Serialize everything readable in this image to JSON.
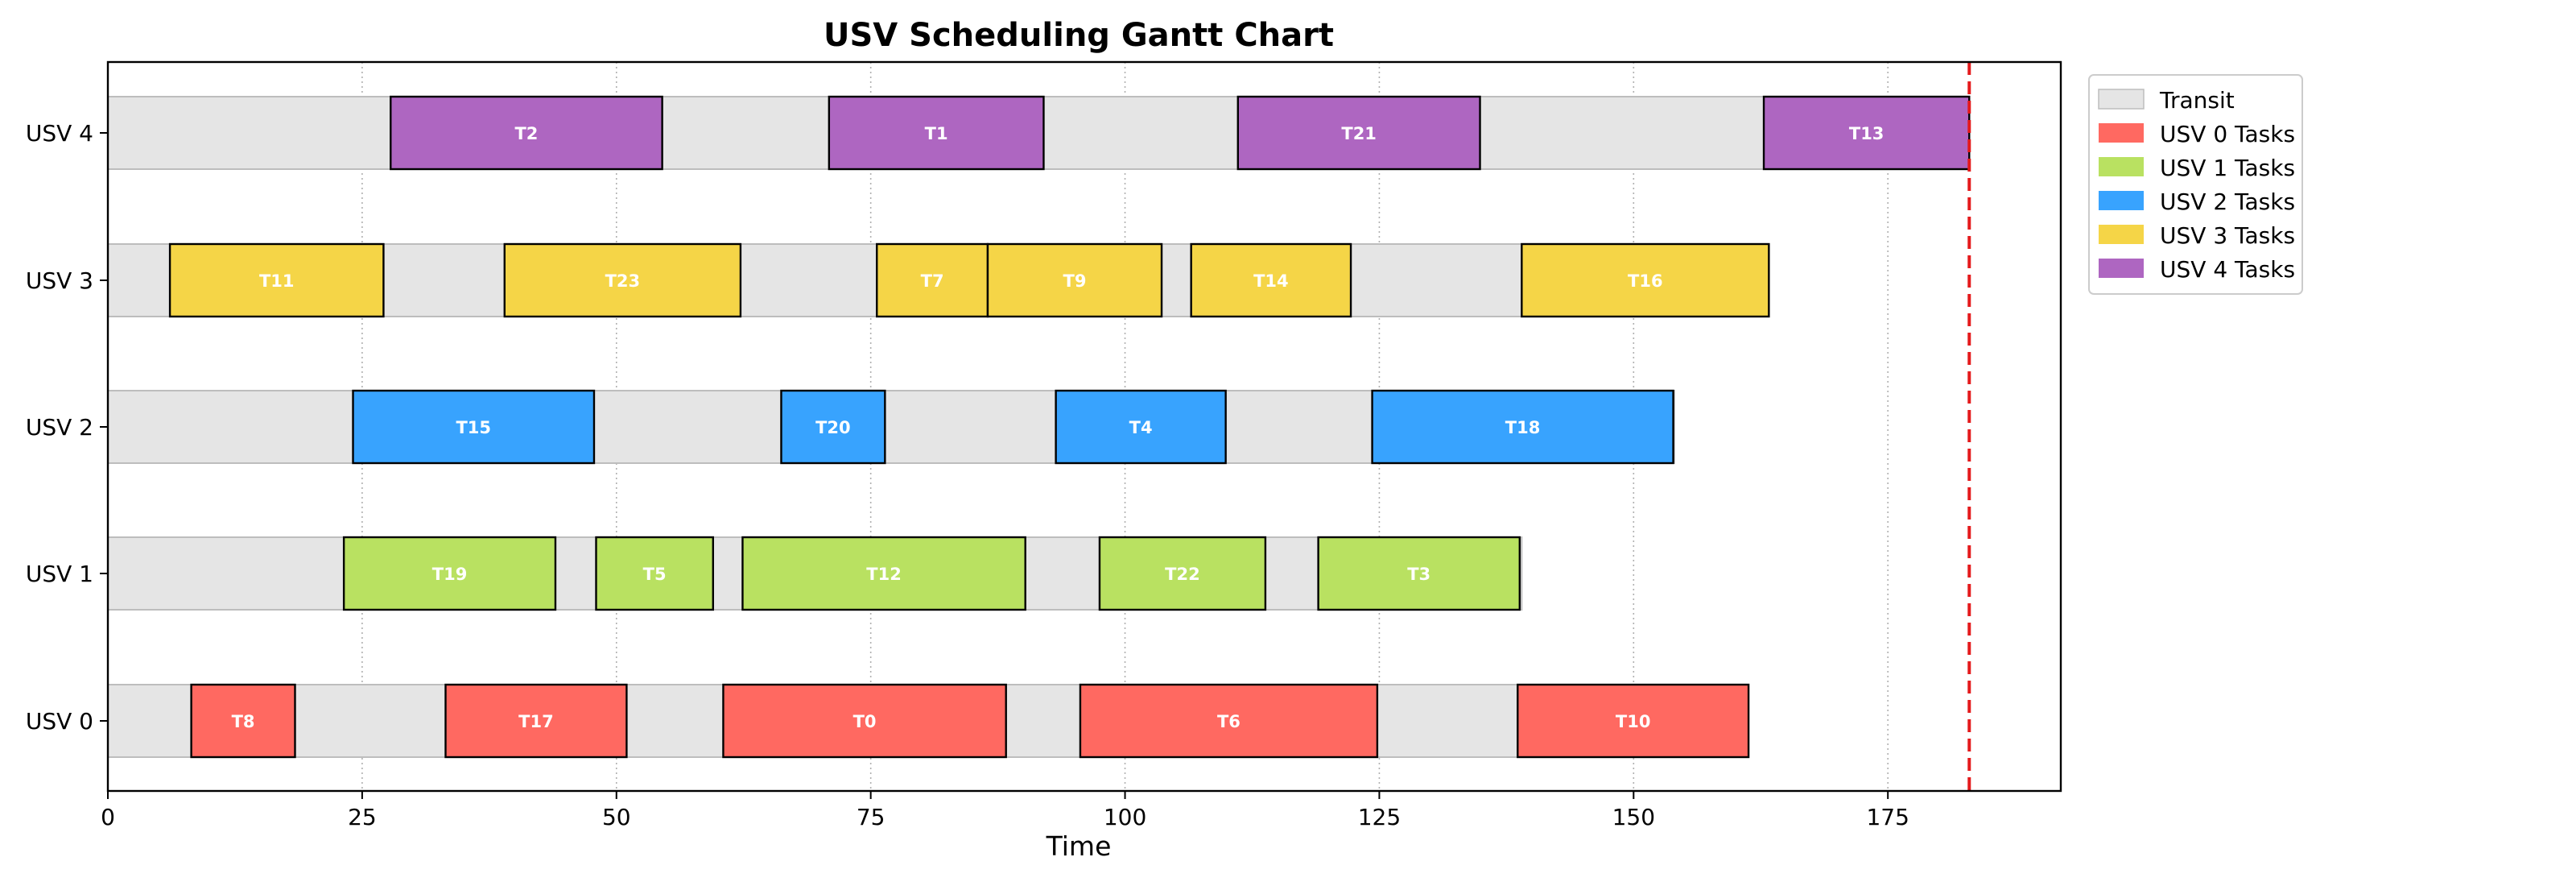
{
  "chart_data": {
    "type": "gantt",
    "title": "USV Scheduling Gantt Chart",
    "xlabel": "Time",
    "ylabel": "",
    "xlim": [
      0,
      192
    ],
    "xticks": [
      0,
      25,
      50,
      75,
      100,
      125,
      150,
      175
    ],
    "grid": "vertical dotted",
    "legend_placement": "outside upper-right",
    "makespan_line": 183,
    "makespan_line_color": "#e41a1c",
    "transit_color": "#e5e5e5",
    "legend": [
      "Transit",
      "USV 0 Tasks",
      "USV 1 Tasks",
      "USV 2 Tasks",
      "USV 3 Tasks",
      "USV 4 Tasks"
    ],
    "rows": [
      {
        "name": "USV 0",
        "color": "#ff6961",
        "transit": [
          0,
          161
        ],
        "tasks": [
          {
            "label": "T8",
            "start": 8.2,
            "end": 18.4
          },
          {
            "label": "T17",
            "start": 33.2,
            "end": 51.0
          },
          {
            "label": "T0",
            "start": 60.5,
            "end": 88.3
          },
          {
            "label": "T6",
            "start": 95.6,
            "end": 124.8
          },
          {
            "label": "T10",
            "start": 138.6,
            "end": 161.3
          }
        ]
      },
      {
        "name": "USV 1",
        "color": "#b9e161",
        "transit": [
          0,
          139
        ],
        "tasks": [
          {
            "label": "T19",
            "start": 23.2,
            "end": 44.0
          },
          {
            "label": "T5",
            "start": 48.0,
            "end": 59.5
          },
          {
            "label": "T12",
            "start": 62.4,
            "end": 90.2
          },
          {
            "label": "T22",
            "start": 97.5,
            "end": 113.8
          },
          {
            "label": "T3",
            "start": 119.0,
            "end": 138.8
          }
        ]
      },
      {
        "name": "USV 2",
        "color": "#38a3fe",
        "transit": [
          0,
          154
        ],
        "tasks": [
          {
            "label": "T15",
            "start": 24.1,
            "end": 47.8
          },
          {
            "label": "T20",
            "start": 66.2,
            "end": 76.4
          },
          {
            "label": "T4",
            "start": 93.2,
            "end": 109.9
          },
          {
            "label": "T18",
            "start": 124.3,
            "end": 153.9
          }
        ]
      },
      {
        "name": "USV 3",
        "color": "#f5d547",
        "transit": [
          0,
          163
        ],
        "tasks": [
          {
            "label": "T11",
            "start": 6.1,
            "end": 27.1
          },
          {
            "label": "T23",
            "start": 39.0,
            "end": 62.2
          },
          {
            "label": "T7",
            "start": 75.6,
            "end": 86.5
          },
          {
            "label": "T9",
            "start": 86.5,
            "end": 103.6
          },
          {
            "label": "T14",
            "start": 106.5,
            "end": 122.2
          },
          {
            "label": "T16",
            "start": 139.0,
            "end": 163.3
          }
        ]
      },
      {
        "name": "USV 4",
        "color": "#ae66c1",
        "transit": [
          0,
          183
        ],
        "tasks": [
          {
            "label": "T2",
            "start": 27.8,
            "end": 54.5
          },
          {
            "label": "T1",
            "start": 70.9,
            "end": 92.0
          },
          {
            "label": "T21",
            "start": 111.1,
            "end": 134.9
          },
          {
            "label": "T13",
            "start": 162.8,
            "end": 183.0
          }
        ]
      }
    ]
  }
}
